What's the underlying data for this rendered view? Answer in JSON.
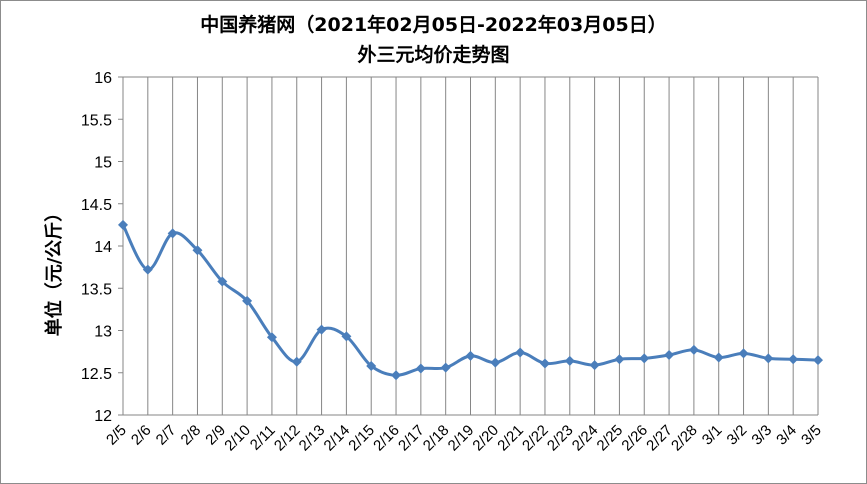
{
  "chart_data": {
    "type": "line",
    "title": "中国养猪网（2021年02月05日-2022年03月05日）",
    "subtitle": "外三元均价走势图",
    "ylabel": "单位（元/公斤）",
    "xlabel": "",
    "ylim": [
      12,
      16
    ],
    "ytick_step": 0.5,
    "grid": "vertical",
    "line_color": "#4a7ebb",
    "categories": [
      "2/5",
      "2/6",
      "2/7",
      "2/8",
      "2/9",
      "2/10",
      "2/11",
      "2/12",
      "2/13",
      "2/14",
      "2/15",
      "2/16",
      "2/17",
      "2/18",
      "2/19",
      "2/20",
      "2/21",
      "2/22",
      "2/23",
      "2/24",
      "2/25",
      "2/26",
      "2/27",
      "2/28",
      "3/1",
      "3/2",
      "3/3",
      "3/4",
      "3/5"
    ],
    "values": [
      14.25,
      13.72,
      14.15,
      13.95,
      13.58,
      13.35,
      12.92,
      12.63,
      13.01,
      12.93,
      12.58,
      12.47,
      12.55,
      12.56,
      12.7,
      12.62,
      12.74,
      12.61,
      12.64,
      12.59,
      12.66,
      12.67,
      12.71,
      12.77,
      12.68,
      12.73,
      12.67,
      12.66,
      12.65
    ]
  }
}
